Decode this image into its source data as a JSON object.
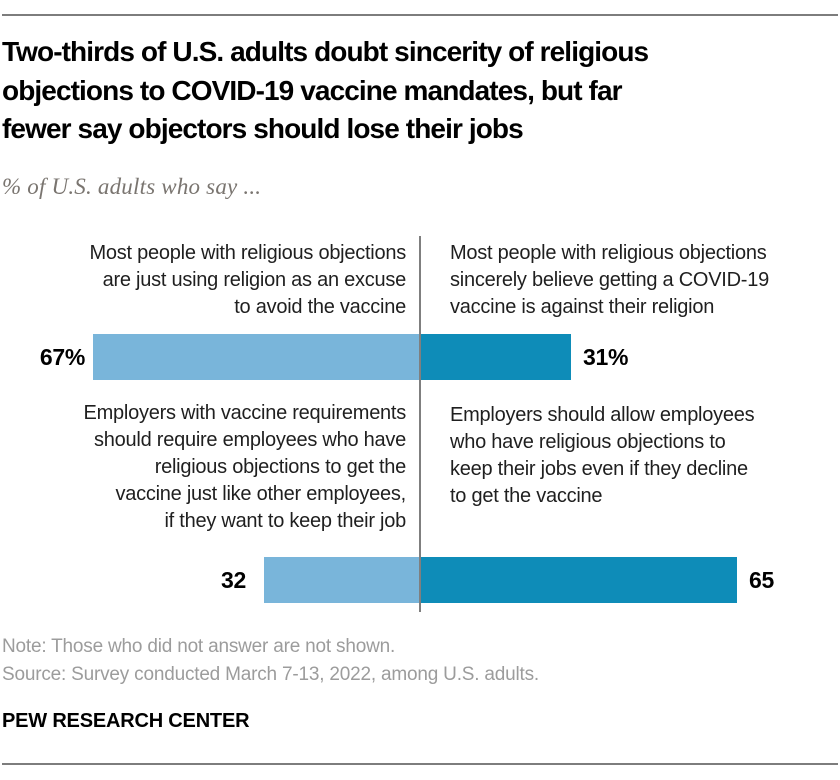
{
  "page": {
    "title": "Two-thirds of U.S. adults doubt sincerity of religious\nobjections to COVID-19 vaccine mandates, but far\nfewer say objectors should lose their jobs",
    "subtitle": "% of U.S. adults who say ...",
    "note": "Note: Those who did not answer are not shown.",
    "source": "Source: Survey conducted March 7-13, 2022, among U.S. adults.",
    "brand": "PEW RESEARCH CENTER"
  },
  "chart_data": {
    "type": "bar",
    "variant": "diverging-horizontal-pairs",
    "title": "Two-thirds of U.S. adults doubt sincerity of religious objections to COVID-19 vaccine mandates, but far fewer say objectors should lose their jobs",
    "subtitle": "% of U.S. adults who say ...",
    "value_unit": "percent of U.S. adults",
    "legend_position": "none",
    "grid": false,
    "center_divider": true,
    "xlim_each_side": [
      0,
      70
    ],
    "pairs": [
      {
        "left": {
          "label": "Most people with religious objections\nare just using religion as an excuse\nto avoid the vaccine",
          "value": 67,
          "value_label": "67%"
        },
        "right": {
          "label": "Most people with religious objections\nsincerely believe getting a COVID-19\nvaccine is against their religion",
          "value": 31,
          "value_label": "31%"
        }
      },
      {
        "left": {
          "label": "Employers with vaccine requirements\nshould require employees who have\nreligious objections to get the\nvaccine just like other employees,\nif they want to keep their job",
          "value": 32,
          "value_label": "32"
        },
        "right": {
          "label": "Employers should allow employees\nwho have religious objections to\nkeep their jobs even if they decline\nto get the vaccine",
          "value": 65,
          "value_label": "65"
        }
      }
    ],
    "colors": {
      "left_bar": "#79b5da",
      "right_bar": "#0e8cb8",
      "divider": "#7f7f7f"
    }
  }
}
